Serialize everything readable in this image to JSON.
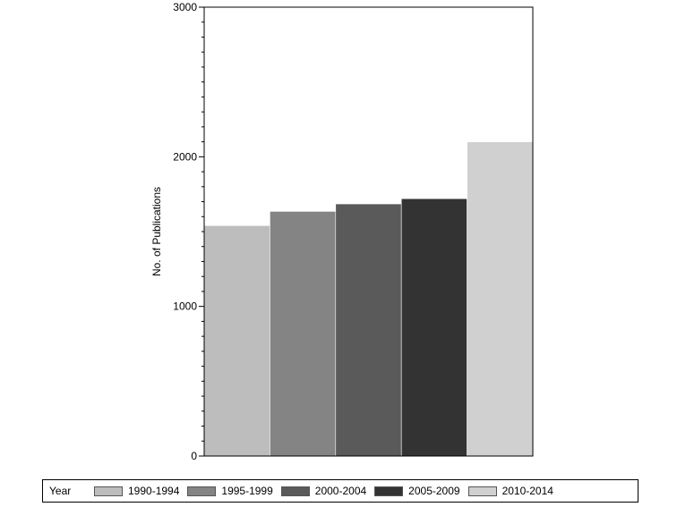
{
  "chart_data": {
    "type": "bar",
    "title": "",
    "xlabel": "",
    "ylabel": "No. of Publications",
    "ylim": [
      0,
      3000
    ],
    "yticks": [
      "0",
      "1000",
      "2000",
      "3000"
    ],
    "categories": [
      "1990-1994",
      "1995-1999",
      "2000-2004",
      "2005-2009",
      "2010-2014"
    ],
    "values": [
      1540,
      1635,
      1685,
      1720,
      2100
    ],
    "colors": [
      "#bdbdbd",
      "#848484",
      "#5a5a5a",
      "#333333",
      "#d0d0d0"
    ],
    "legend": {
      "title": "Year",
      "position": "bottom",
      "entries": [
        "1990-1994",
        "1995-1999",
        "2000-2004",
        "2005-2009",
        "2010-2014"
      ]
    },
    "grid": false
  }
}
